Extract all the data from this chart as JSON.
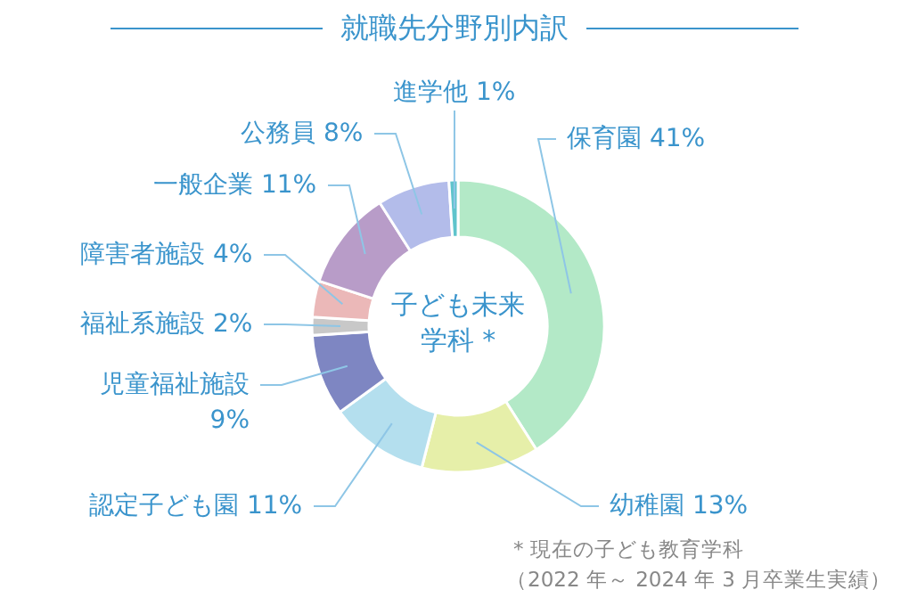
{
  "chart_data": {
    "type": "donut",
    "title": "就職先分野別内訳",
    "categories": [
      "保育園",
      "幼稚園",
      "認定子ども園",
      "児童福祉施設",
      "福祉系施設",
      "障害者施設",
      "一般企業",
      "公務員",
      "進学他"
    ],
    "values": [
      41,
      13,
      11,
      9,
      2,
      4,
      11,
      8,
      1
    ],
    "value_labels": [
      "41%",
      "13%",
      "11%",
      "9%",
      "2%",
      "4%",
      "11%",
      "8%",
      "1%"
    ],
    "colors": [
      "#b3e9c7",
      "#e6efa9",
      "#b4dfee",
      "#7e86c2",
      "#c8c8c8",
      "#ebb8b8",
      "#b89cc8",
      "#b3bcea",
      "#5fc4cc"
    ],
    "annotations": [
      "子ども未来学科 *",
      "* 現在の子ども教育学科",
      "（2022 年～ 2024 年 3 月卒業生実績）"
    ]
  }
}
